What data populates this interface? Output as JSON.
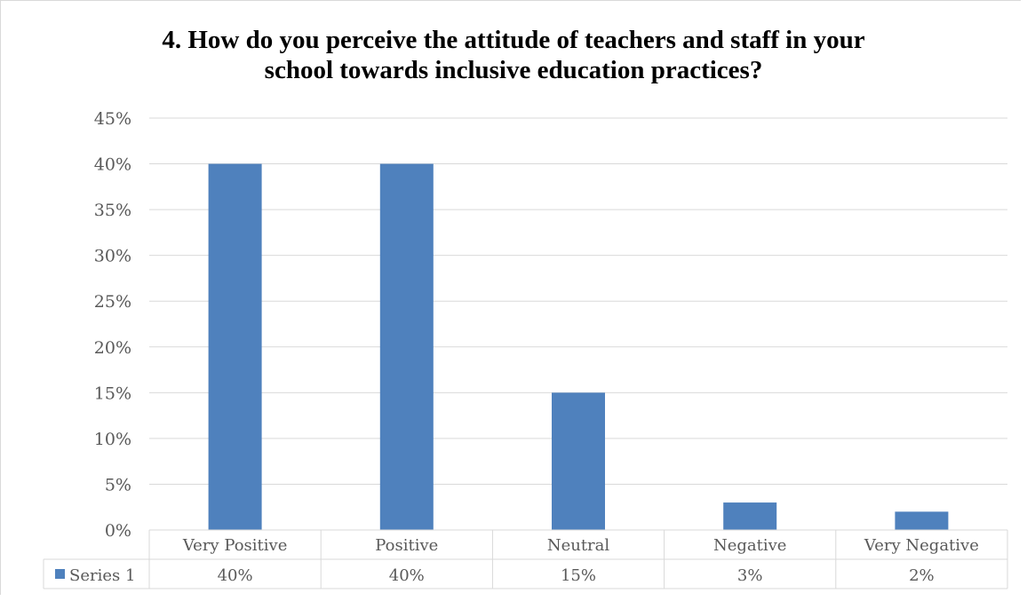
{
  "chart_data": {
    "type": "bar",
    "title_lines": [
      "4. How do you perceive the attitude of teachers and staff in your",
      "school towards inclusive education practices?"
    ],
    "categories": [
      "Very Positive",
      "Positive",
      "Neutral",
      "Negative",
      "Very Negative"
    ],
    "series": [
      {
        "name": "Series 1",
        "values": [
          40,
          40,
          15,
          3,
          2
        ],
        "color": "#4f81bd"
      }
    ],
    "data_table_values": [
      "40%",
      "40%",
      "15%",
      "3%",
      "2%"
    ],
    "y_ticks": [
      "0%",
      "5%",
      "10%",
      "15%",
      "20%",
      "25%",
      "30%",
      "35%",
      "40%",
      "45%"
    ],
    "ylim": [
      0,
      45
    ],
    "grid": true,
    "legend": "data-table"
  }
}
